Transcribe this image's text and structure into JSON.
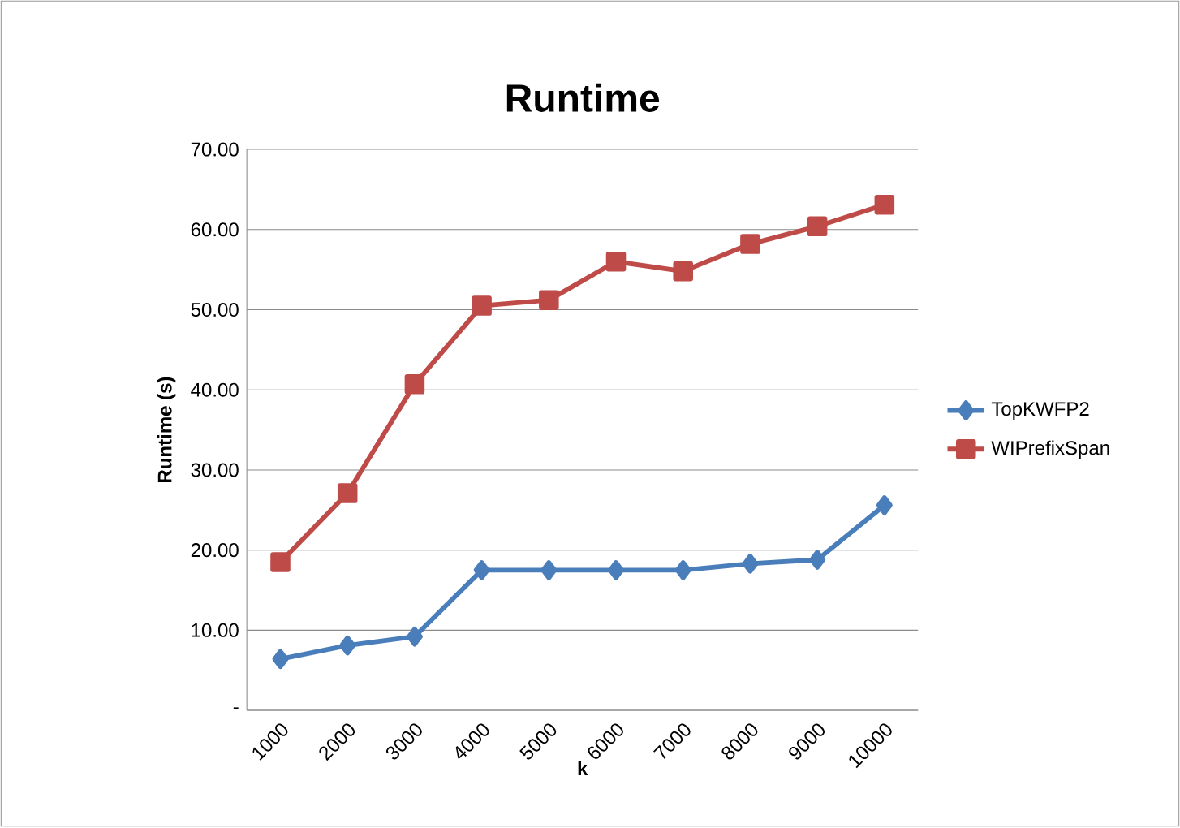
{
  "chart_data": {
    "type": "line",
    "title": "Runtime",
    "xlabel": "k",
    "ylabel": "Runtime (s)",
    "categories": [
      "1000",
      "2000",
      "3000",
      "4000",
      "5000",
      "6000",
      "7000",
      "8000",
      "9000",
      "10000"
    ],
    "series": [
      {
        "name": "TopKWFP2",
        "color": "#4a7ebb",
        "marker": "diamond",
        "values": [
          6.4,
          8.1,
          9.2,
          17.5,
          17.5,
          17.5,
          17.5,
          18.3,
          18.8,
          25.6
        ]
      },
      {
        "name": "WIPrefixSpan",
        "color": "#be4b48",
        "marker": "square",
        "values": [
          18.5,
          27.1,
          40.7,
          50.5,
          51.2,
          56.0,
          54.8,
          58.2,
          60.4,
          63.1
        ]
      }
    ],
    "ylim": [
      0,
      70
    ],
    "yticks": [
      {
        "value": 0,
        "label": "-"
      },
      {
        "value": 10,
        "label": "10.00"
      },
      {
        "value": 20,
        "label": "20.00"
      },
      {
        "value": 30,
        "label": "30.00"
      },
      {
        "value": 40,
        "label": "40.00"
      },
      {
        "value": 50,
        "label": "50.00"
      },
      {
        "value": 60,
        "label": "60.00"
      },
      {
        "value": 70,
        "label": "70.00"
      }
    ],
    "grid": "y",
    "legend": "right",
    "line_style": "solid"
  }
}
